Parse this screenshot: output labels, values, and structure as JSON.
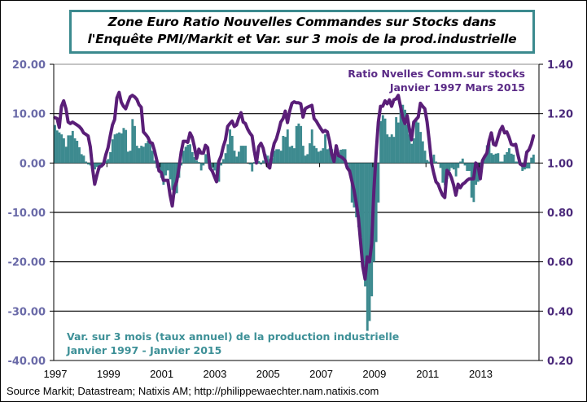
{
  "chart_data": {
    "type": "bar+line",
    "title": [
      "Zone Euro Ratio Nouvelles Commandes sur Stocks dans",
      "l'Enquête PMI/Markit  et Var. sur 3 mois de la prod.industrielle"
    ],
    "x_start": "1997-01",
    "frequency": "monthly",
    "x_tick_labels": [
      "1997",
      "1999",
      "2001",
      "2003",
      "2005",
      "2007",
      "2009",
      "2011",
      "2013"
    ],
    "y_left": {
      "range": [
        -40,
        20
      ],
      "tick_labels": [
        "20.00",
        "10.00",
        "0.00",
        "-10.00",
        "-20.00",
        "-30.00",
        "-40.00"
      ]
    },
    "y_right": {
      "range": [
        0.2,
        1.4
      ],
      "tick_labels": [
        "1.40",
        "1.20",
        "1.00",
        "0.80",
        "0.60",
        "0.40",
        "0.20"
      ]
    },
    "grid": "horizontal",
    "series": [
      {
        "name": "Var. sur 3 mois (taux annuel)  de la production industrielle",
        "period": "Janvier 1997 - Janvier 2015",
        "type": "bar",
        "axis": "left",
        "color": "#3D8A8F",
        "values": [
          7.7,
          6.6,
          6.2,
          5.8,
          5.0,
          3.3,
          5.6,
          5.6,
          6.5,
          5.0,
          4.5,
          3.2,
          1.8,
          1.5,
          0.3,
          -0.3,
          -0.5,
          -1.0,
          -1.3,
          -0.8,
          -1.3,
          -0.7,
          -0.3,
          0.5,
          0.8,
          2.2,
          4.8,
          5.8,
          6.0,
          6.2,
          6.0,
          7.1,
          6.7,
          2.3,
          2.5,
          8.9,
          7.5,
          3.5,
          3.0,
          3.5,
          3.3,
          4.0,
          4.5,
          4.0,
          2.5,
          0.5,
          -1,
          -1.5,
          -3,
          -4.4,
          -2.5,
          -1.5,
          -3.3,
          -5.5,
          -6.3,
          -6.1,
          -3,
          -0.5,
          2.5,
          3.3,
          3.7,
          3.8,
          2.2,
          1.2,
          0.5,
          0.2,
          -1.5,
          -0.5,
          1.8,
          2.2,
          -0.3,
          -1.0,
          -1.5,
          -4.0,
          -3.8,
          -0.5,
          0.8,
          2.0,
          3.8,
          6.8,
          5.5,
          2.5,
          1.3,
          2.3,
          3.5,
          3.5,
          3.5,
          0,
          -0.3,
          -1.7,
          0.2,
          0.5,
          0.4,
          -0.3,
          0.5,
          1.8,
          1.5,
          0.8,
          1.0,
          2.5,
          2.8,
          2.8,
          2.5,
          5.5,
          5.3,
          6.8,
          3.3,
          3.5,
          3.0,
          7.5,
          8.0,
          7.5,
          3.5,
          1.5,
          1.8,
          4.0,
          6.8,
          3.5,
          3.0,
          2.3,
          2.5,
          3.0,
          5.8,
          2.8,
          3.0,
          2.8,
          1.3,
          1.5,
          2.1,
          2.7,
          2.8,
          2.8,
          -0.3,
          -1.5,
          -8,
          -9,
          -11,
          -13,
          -15,
          -20,
          -25,
          -34,
          -32,
          -27,
          -20,
          -16,
          -8,
          8.5,
          9.7,
          9.0,
          5.8,
          5.3,
          5.8,
          5.3,
          9.3,
          8.2,
          11.8,
          11.8,
          10.8,
          7.8,
          5.8,
          3.9,
          5.0,
          9.1,
          8.2,
          6.3,
          4.4,
          2.5,
          0.6,
          0.3,
          0,
          1.7,
          0.3,
          0,
          -1.0,
          -4.0,
          -4.5,
          -3.2,
          -1.6,
          -1.0,
          -1.3,
          -2.7,
          -1.0,
          0.3,
          0.9,
          -0.5,
          -1.6,
          -1.6,
          -7.0,
          -7.9,
          -4.4,
          -3.8,
          -2.2,
          0,
          1.7,
          3.6,
          3.9,
          2.0,
          1.7,
          1.9,
          2.0,
          0.3,
          0.3,
          1.7,
          2.2,
          3.0,
          1.9,
          1.7,
          0.3,
          0.3,
          0,
          -1.6,
          -1.3,
          -1.1,
          -1.1,
          1.1,
          1.7
        ]
      },
      {
        "name": "Ratio  Nvelles  Comm.sur stocks",
        "period": "Janvier 1997   Mars 2015",
        "type": "line",
        "axis": "right",
        "color": "#5A1E78",
        "values": [
          1.184,
          1.18,
          1.144,
          1.23,
          1.252,
          1.22,
          1.166,
          1.16,
          1.166,
          1.16,
          1.154,
          1.148,
          1.138,
          1.122,
          1.116,
          1.11,
          1.066,
          0.98,
          0.914,
          0.952,
          0.984,
          0.988,
          0.996,
          1.034,
          1.062,
          1.11,
          1.154,
          1.176,
          1.264,
          1.286,
          1.246,
          1.23,
          1.22,
          1.246,
          1.268,
          1.274,
          1.268,
          1.258,
          1.236,
          1.226,
          1.126,
          1.116,
          1.104,
          1.084,
          1.08,
          1.05,
          1.012,
          0.968,
          0.962,
          0.93,
          0.93,
          0.93,
          0.87,
          0.826,
          0.902,
          0.924,
          0.98,
          1.044,
          1.088,
          1.088,
          1.084,
          1.122,
          1.104,
          1.066,
          1.018,
          1.056,
          1.04,
          1.04,
          1.072,
          1.062,
          0.98,
          0.968,
          0.946,
          0.924,
          1.006,
          1.028,
          1.066,
          1.094,
          1.148,
          1.16,
          1.17,
          1.148,
          1.154,
          1.182,
          1.204,
          1.166,
          1.16,
          1.138,
          1.122,
          1.11,
          1.05,
          1.0,
          1.066,
          1.08,
          1.06,
          1.02,
          0.99,
          0.98,
          1.04,
          1.08,
          1.098,
          1.13,
          1.166,
          1.18,
          1.21,
          1.164,
          1.21,
          1.242,
          1.248,
          1.244,
          1.244,
          1.24,
          1.186,
          1.22,
          1.226,
          1.23,
          1.234,
          1.18,
          1.17,
          1.154,
          1.14,
          1.126,
          1.132,
          1.126,
          1.088,
          1.036,
          1.006,
          1.07,
          1.03,
          1.026,
          1.02,
          1.01,
          0.98,
          0.968,
          0.93,
          0.89,
          0.84,
          0.78,
          0.68,
          0.58,
          0.53,
          0.62,
          0.6,
          0.672,
          0.892,
          1.04,
          1.166,
          1.23,
          1.23,
          1.252,
          1.24,
          1.256,
          1.23,
          1.256,
          1.26,
          1.274,
          1.23,
          1.186,
          1.16,
          1.192,
          1.14,
          1.094,
          1.166,
          1.176,
          1.186,
          1.242,
          1.23,
          1.22,
          1.166,
          1.088,
          1.0,
          0.96,
          0.924,
          0.914,
          0.89,
          0.87,
          0.86,
          0.97,
          0.96,
          0.94,
          0.91,
          0.87,
          0.914,
          0.9,
          0.914,
          0.92,
          0.93,
          0.936,
          0.936,
          0.936,
          1.0,
          0.99,
          0.936,
          1.01,
          1.026,
          1.04,
          1.09,
          1.122,
          1.076,
          1.072,
          1.104,
          1.132,
          1.148,
          1.122,
          1.126,
          1.104,
          1.076,
          1.072,
          1.076,
          1.034,
          0.996,
          0.99,
          0.99,
          1.044,
          1.054,
          1.076,
          1.11
        ]
      }
    ],
    "source": "Source Markit; Datastream; Natixis AM; http://philippewaechter.nam.natixis.com"
  }
}
